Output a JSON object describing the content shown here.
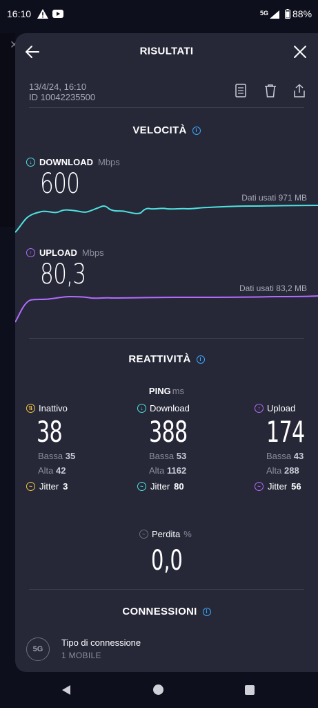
{
  "status_bar": {
    "time": "16:10",
    "network": "5G",
    "battery": "88%"
  },
  "header": {
    "title": "RISULTATI",
    "back_icon": "arrow-left-icon",
    "close_icon": "close-icon"
  },
  "meta": {
    "date": "13/4/24, 16:10",
    "id": "ID 10042235500"
  },
  "speed": {
    "title": "VELOCITÀ",
    "download": {
      "label": "DOWNLOAD",
      "unit": "Mbps",
      "value": "600",
      "used": "Dati usati 971 MB",
      "color": "#4fe3e0"
    },
    "upload": {
      "label": "UPLOAD",
      "unit": "Mbps",
      "value": "80,3",
      "used": "Dati usati 83,2 MB",
      "color": "#b46cff"
    }
  },
  "responsiveness": {
    "title": "REATTIVITÀ",
    "ping_label": "PING",
    "ping_unit": "ms",
    "columns": [
      {
        "label": "Inattivo",
        "value": "38",
        "low_label": "Bassa",
        "low": "35",
        "high_label": "Alta",
        "high": "42",
        "jitter_label": "Jitter",
        "jitter": "3",
        "color": "#f5c542"
      },
      {
        "label": "Download",
        "value": "388",
        "low_label": "Bassa",
        "low": "53",
        "high_label": "Alta",
        "high": "1162",
        "jitter_label": "Jitter",
        "jitter": "80",
        "color": "#4fe3e0"
      },
      {
        "label": "Upload",
        "value": "174",
        "low_label": "Bassa",
        "low": "43",
        "high_label": "Alta",
        "high": "288",
        "jitter_label": "Jitter",
        "jitter": "56",
        "color": "#b46cff"
      }
    ],
    "loss_label": "Perdita",
    "loss_unit": "%",
    "loss_value": "0,0"
  },
  "connections": {
    "title": "CONNESSIONI",
    "badge": "5G",
    "type_label": "Tipo di connessione",
    "type_value": "1 MOBILE"
  }
}
